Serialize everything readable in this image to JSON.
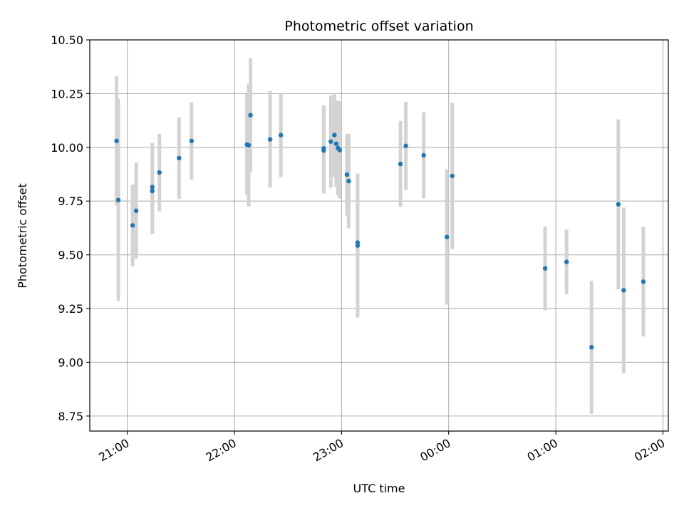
{
  "chart_data": {
    "type": "scatter",
    "title": "Photometric offset variation",
    "xlabel": "UTC time",
    "ylabel": "Photometric offset",
    "grid": true,
    "x_ticks": [
      "21:00",
      "22:00",
      "23:00",
      "00:00",
      "01:00",
      "02:00"
    ],
    "x_range": [
      "20:39",
      "26:03"
    ],
    "y_ticks": [
      "8.75",
      "9.00",
      "9.25",
      "9.50",
      "9.75",
      "10.00",
      "10.25",
      "10.50"
    ],
    "ylim": [
      8.68,
      10.5
    ],
    "point_color": "#1f77b4",
    "errorbar_color": "#d3d3d3",
    "points": [
      {
        "x": "20:54",
        "y": 10.03,
        "err": 0.3
      },
      {
        "x": "20:55",
        "y": 9.755,
        "err": 0.47
      },
      {
        "x": "21:03",
        "y": 9.637,
        "err": 0.19
      },
      {
        "x": "21:05",
        "y": 9.705,
        "err": 0.225
      },
      {
        "x": "21:14",
        "y": 9.815,
        "err": 0.205
      },
      {
        "x": "21:14",
        "y": 9.797,
        "err": 0.2
      },
      {
        "x": "21:18",
        "y": 9.883,
        "err": 0.18
      },
      {
        "x": "21:29",
        "y": 9.95,
        "err": 0.19
      },
      {
        "x": "21:36",
        "y": 10.03,
        "err": 0.18
      },
      {
        "x": "22:07",
        "y": 10.013,
        "err": 0.235
      },
      {
        "x": "22:08",
        "y": 10.01,
        "err": 0.285
      },
      {
        "x": "22:09",
        "y": 10.15,
        "err": 0.265
      },
      {
        "x": "22:20",
        "y": 10.037,
        "err": 0.225
      },
      {
        "x": "22:26",
        "y": 10.057,
        "err": 0.195
      },
      {
        "x": "22:50",
        "y": 9.995,
        "err": 0.2
      },
      {
        "x": "22:50",
        "y": 9.985,
        "err": 0.2
      },
      {
        "x": "22:54",
        "y": 10.027,
        "err": 0.215
      },
      {
        "x": "22:56",
        "y": 10.057,
        "err": 0.195
      },
      {
        "x": "22:57",
        "y": 10.017,
        "err": 0.2
      },
      {
        "x": "22:58",
        "y": 9.997,
        "err": 0.22
      },
      {
        "x": "22:59",
        "y": 9.987,
        "err": 0.225
      },
      {
        "x": "23:03",
        "y": 9.873,
        "err": 0.19
      },
      {
        "x": "23:04",
        "y": 9.843,
        "err": 0.22
      },
      {
        "x": "23:09",
        "y": 9.557,
        "err": 0.255
      },
      {
        "x": "23:09",
        "y": 9.543,
        "err": 0.335
      },
      {
        "x": "23:33",
        "y": 9.923,
        "err": 0.2
      },
      {
        "x": "23:36",
        "y": 10.007,
        "err": 0.205
      },
      {
        "x": "23:46",
        "y": 9.963,
        "err": 0.2
      },
      {
        "x": "23:59",
        "y": 9.583,
        "err": 0.315
      },
      {
        "x": "24:02",
        "y": 9.867,
        "err": 0.34
      },
      {
        "x": "24:54",
        "y": 9.437,
        "err": 0.195
      },
      {
        "x": "25:06",
        "y": 9.467,
        "err": 0.15
      },
      {
        "x": "25:20",
        "y": 9.07,
        "err": 0.31
      },
      {
        "x": "25:35",
        "y": 9.735,
        "err": 0.395
      },
      {
        "x": "25:38",
        "y": 9.335,
        "err": 0.385
      },
      {
        "x": "25:49",
        "y": 9.375,
        "err": 0.255
      }
    ]
  }
}
